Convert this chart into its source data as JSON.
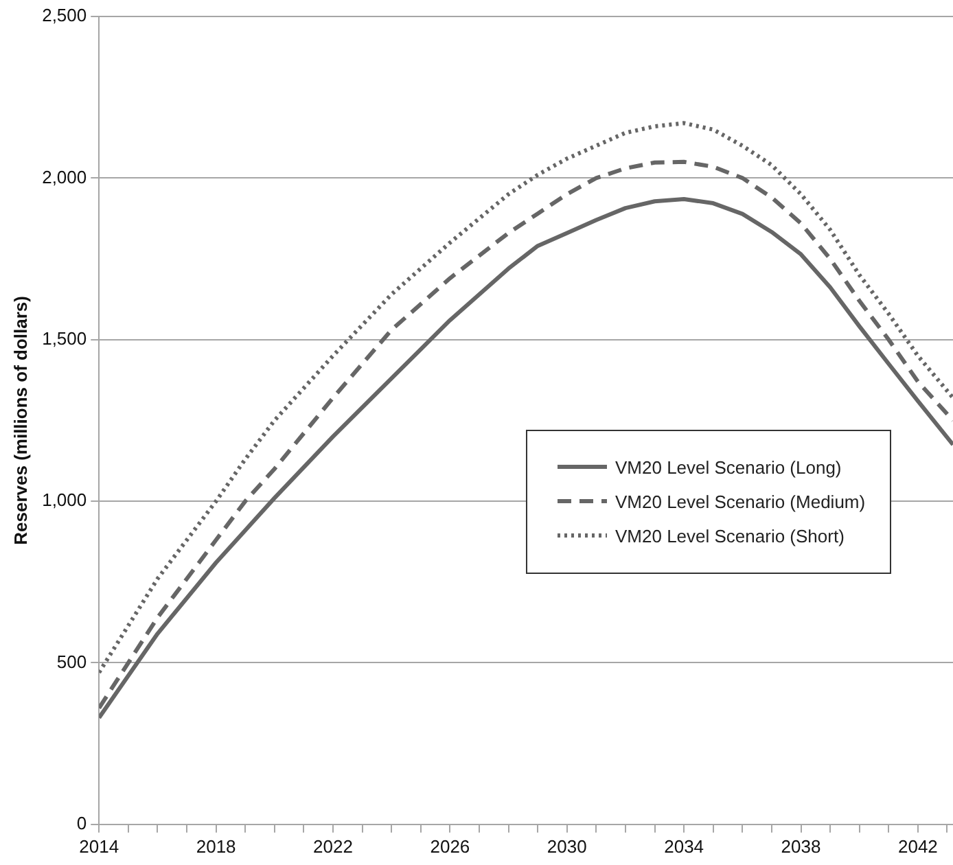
{
  "chart_data": {
    "type": "line",
    "ylabel": "Reserves (millions of dollars)",
    "x": [
      2014,
      2016,
      2018,
      2019,
      2020,
      2022,
      2024,
      2026,
      2028,
      2029,
      2030,
      2031,
      2032,
      2033,
      2034,
      2035,
      2036,
      2037,
      2038,
      2039,
      2040,
      2041,
      2042,
      2043.2
    ],
    "series": [
      {
        "name": "VM20 Level Scenario (Long)",
        "color": "#666666",
        "line_style": "solid",
        "values": [
          330,
          590,
          810,
          910,
          1010,
          1200,
          1380,
          1560,
          1720,
          1790,
          1830,
          1870,
          1907,
          1928,
          1935,
          1922,
          1889,
          1833,
          1764,
          1662,
          1541,
          1425,
          1310,
          1175
        ]
      },
      {
        "name": "VM20 Level Scenario (Medium)",
        "color": "#666666",
        "line_style": "dashed",
        "values": [
          360,
          640,
          880,
          1000,
          1100,
          1320,
          1530,
          1690,
          1830,
          1890,
          1950,
          2000,
          2030,
          2048,
          2050,
          2035,
          2000,
          1940,
          1860,
          1750,
          1620,
          1500,
          1370,
          1250
        ]
      },
      {
        "name": "VM20 Level Scenario (Short)",
        "color": "#666666",
        "line_style": "dotted",
        "values": [
          470,
          760,
          1000,
          1130,
          1250,
          1450,
          1640,
          1800,
          1950,
          2010,
          2060,
          2100,
          2140,
          2160,
          2170,
          2150,
          2100,
          2040,
          1950,
          1840,
          1700,
          1580,
          1450,
          1320
        ]
      }
    ],
    "xlim": [
      2014,
      2043.2
    ],
    "xticks": [
      2014,
      {
        "value": 2015,
        "label": null
      },
      {
        "value": 2016,
        "label": null
      },
      {
        "value": 2017,
        "label": null
      },
      2018,
      {
        "value": 2019,
        "label": null
      },
      {
        "value": 2020,
        "label": null
      },
      {
        "value": 2021,
        "label": null
      },
      2022,
      {
        "value": 2023,
        "label": null
      },
      {
        "value": 2024,
        "label": null
      },
      {
        "value": 2025,
        "label": null
      },
      2026,
      {
        "value": 2027,
        "label": null
      },
      {
        "value": 2028,
        "label": null
      },
      {
        "value": 2029,
        "label": null
      },
      2030,
      {
        "value": 2031,
        "label": null
      },
      {
        "value": 2032,
        "label": null
      },
      {
        "value": 2033,
        "label": null
      },
      2034,
      {
        "value": 2035,
        "label": null
      },
      {
        "value": 2036,
        "label": null
      },
      {
        "value": 2037,
        "label": null
      },
      2038,
      {
        "value": 2039,
        "label": null
      },
      {
        "value": 2040,
        "label": null
      },
      {
        "value": 2041,
        "label": null
      },
      2042,
      {
        "value": 2043,
        "label": null
      }
    ],
    "ylim": [
      0,
      2500
    ],
    "yticks": [
      {
        "value": 0,
        "label": "0"
      },
      {
        "value": 500,
        "label": "500"
      },
      {
        "value": 1000,
        "label": "1,000"
      },
      {
        "value": 1500,
        "label": "1,500"
      },
      {
        "value": 2000,
        "label": "2,000"
      },
      {
        "value": 2500,
        "label": "2,500"
      }
    ],
    "grid": "y",
    "legend": "right",
    "marker": "none"
  }
}
